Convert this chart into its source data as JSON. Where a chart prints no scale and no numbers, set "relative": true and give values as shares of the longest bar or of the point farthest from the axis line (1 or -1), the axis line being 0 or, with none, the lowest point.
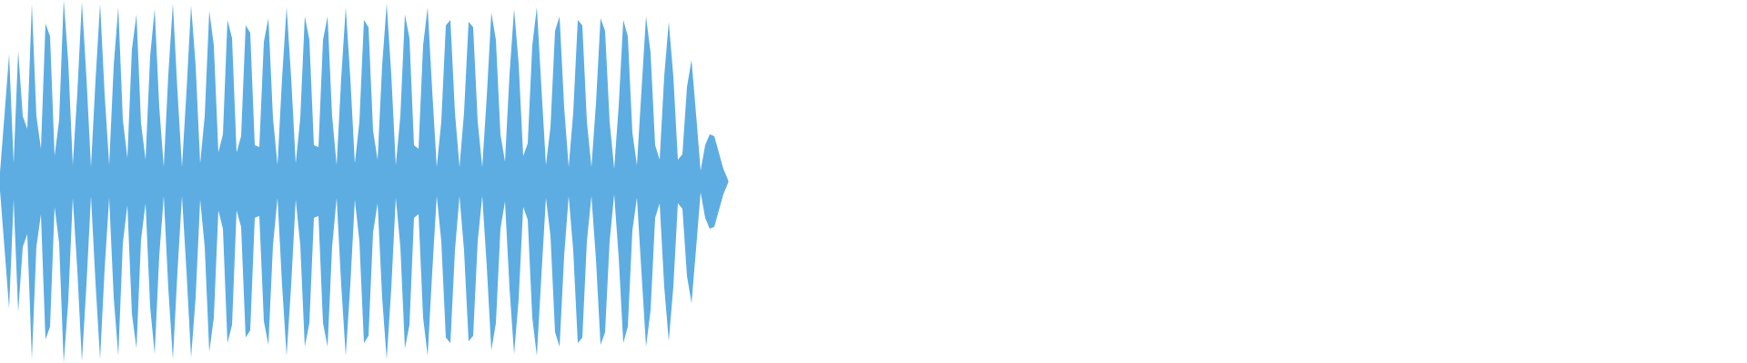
{
  "chart_data": {
    "type": "area",
    "relative": true,
    "categories": [
      null,
      null,
      null,
      null,
      null,
      null,
      null,
      null,
      null,
      null,
      null,
      null,
      null,
      null,
      null,
      null,
      null,
      null,
      null,
      null,
      null,
      null,
      null,
      null,
      null,
      null,
      null,
      null,
      null,
      null,
      null,
      null,
      null,
      null,
      null,
      null,
      null,
      null,
      null,
      null,
      null,
      null,
      null,
      null,
      null,
      null,
      null,
      null,
      null,
      null,
      null,
      null,
      null,
      null,
      null,
      null,
      null,
      null,
      null,
      null,
      null,
      null,
      null,
      null,
      null,
      null,
      null,
      null,
      null,
      null,
      null,
      null,
      null,
      null,
      null,
      null,
      null,
      null,
      null,
      null,
      null,
      null,
      null,
      null,
      null,
      null,
      null,
      null,
      null,
      null,
      null,
      null,
      null,
      null,
      null,
      null,
      null,
      null,
      null,
      null,
      null,
      null,
      null,
      null,
      null,
      null,
      null,
      null,
      null,
      null,
      null,
      null,
      null,
      null,
      null,
      null,
      null,
      null,
      null,
      null,
      null,
      null,
      null,
      null,
      null,
      null,
      null,
      null,
      null,
      null,
      null,
      null,
      null,
      null,
      null,
      null,
      null,
      null,
      null,
      null,
      null,
      null,
      null,
      null,
      null,
      null,
      null,
      null,
      null,
      null,
      null,
      null,
      null,
      null,
      null,
      null,
      null,
      null,
      null,
      null,
      null
    ],
    "series": [
      {
        "color": "#5dade2",
        "values": [
          0.05,
          0.37,
          0.7,
          0.1,
          0.72,
          0.36,
          0.29,
          0.98,
          0.36,
          0.18,
          0.87,
          0.8,
          0.14,
          0.34,
          1.0,
          0.66,
          0.09,
          0.49,
          0.99,
          0.57,
          0.08,
          0.56,
          0.98,
          0.48,
          0.09,
          0.64,
          0.96,
          0.34,
          0.13,
          0.73,
          0.92,
          0.32,
          0.12,
          0.69,
          0.95,
          0.41,
          0.08,
          0.59,
          0.98,
          0.5,
          0.08,
          0.5,
          0.97,
          0.64,
          0.1,
          0.36,
          0.94,
          0.75,
          0.16,
          0.26,
          0.89,
          0.79,
          0.16,
          0.25,
          0.86,
          0.82,
          0.2,
          0.19,
          0.77,
          0.9,
          0.35,
          0.09,
          0.57,
          0.96,
          0.57,
          0.1,
          0.35,
          0.91,
          0.78,
          0.2,
          0.19,
          0.78,
          0.91,
          0.36,
          0.09,
          0.57,
          0.96,
          0.57,
          0.1,
          0.33,
          0.89,
          0.85,
          0.28,
          0.12,
          0.64,
          0.98,
          0.59,
          0.09,
          0.36,
          0.92,
          0.79,
          0.2,
          0.18,
          0.75,
          0.96,
          0.5,
          0.08,
          0.33,
          0.86,
          0.89,
          0.38,
          0.08,
          0.38,
          0.88,
          0.85,
          0.33,
          0.08,
          0.47,
          0.93,
          0.78,
          0.26,
          0.11,
          0.59,
          0.95,
          0.65,
          0.14,
          0.21,
          0.75,
          0.96,
          0.52,
          0.09,
          0.3,
          0.83,
          0.91,
          0.41,
          0.08,
          0.38,
          0.89,
          0.86,
          0.33,
          0.08,
          0.43,
          0.9,
          0.83,
          0.33,
          0.07,
          0.42,
          0.89,
          0.8,
          0.27,
          0.09,
          0.5,
          0.91,
          0.71,
          0.2,
          0.12,
          0.58,
          0.88,
          0.58,
          0.12,
          0.15,
          0.52,
          0.67,
          0.37,
          0.06,
          0.2,
          0.26,
          0.25,
          0.16,
          0.07,
          0.01
        ]
      },
      {
        "color": "#5dade2",
        "values": [
          -0.05,
          -0.37,
          -0.7,
          -0.1,
          -0.72,
          -0.36,
          -0.29,
          -0.98,
          -0.36,
          -0.18,
          -0.87,
          -0.8,
          -0.14,
          -0.34,
          -1.0,
          -0.66,
          -0.09,
          -0.49,
          -0.99,
          -0.57,
          -0.08,
          -0.56,
          -0.98,
          -0.48,
          -0.09,
          -0.64,
          -0.96,
          -0.34,
          -0.13,
          -0.73,
          -0.92,
          -0.32,
          -0.12,
          -0.69,
          -0.95,
          -0.41,
          -0.08,
          -0.59,
          -0.98,
          -0.5,
          -0.08,
          -0.5,
          -0.97,
          -0.64,
          -0.1,
          -0.36,
          -0.94,
          -0.75,
          -0.16,
          -0.26,
          -0.89,
          -0.79,
          -0.16,
          -0.25,
          -0.86,
          -0.82,
          -0.2,
          -0.19,
          -0.77,
          -0.9,
          -0.35,
          -0.09,
          -0.57,
          -0.96,
          -0.57,
          -0.1,
          -0.35,
          -0.91,
          -0.78,
          -0.2,
          -0.19,
          -0.78,
          -0.91,
          -0.36,
          -0.09,
          -0.57,
          -0.96,
          -0.57,
          -0.1,
          -0.33,
          -0.89,
          -0.85,
          -0.28,
          -0.12,
          -0.64,
          -0.98,
          -0.59,
          -0.09,
          -0.36,
          -0.92,
          -0.79,
          -0.2,
          -0.18,
          -0.75,
          -0.96,
          -0.5,
          -0.08,
          -0.33,
          -0.86,
          -0.89,
          -0.38,
          -0.08,
          -0.38,
          -0.88,
          -0.85,
          -0.33,
          -0.08,
          -0.47,
          -0.93,
          -0.78,
          -0.26,
          -0.11,
          -0.59,
          -0.95,
          -0.65,
          -0.14,
          -0.21,
          -0.75,
          -0.96,
          -0.52,
          -0.09,
          -0.3,
          -0.83,
          -0.91,
          -0.41,
          -0.08,
          -0.38,
          -0.89,
          -0.86,
          -0.33,
          -0.08,
          -0.43,
          -0.9,
          -0.83,
          -0.33,
          -0.07,
          -0.42,
          -0.89,
          -0.8,
          -0.27,
          -0.09,
          -0.5,
          -0.91,
          -0.71,
          -0.2,
          -0.12,
          -0.58,
          -0.88,
          -0.58,
          -0.12,
          -0.15,
          -0.52,
          -0.67,
          -0.37,
          -0.06,
          -0.2,
          -0.26,
          -0.25,
          -0.16,
          -0.07,
          -0.01
        ]
      }
    ]
  }
}
